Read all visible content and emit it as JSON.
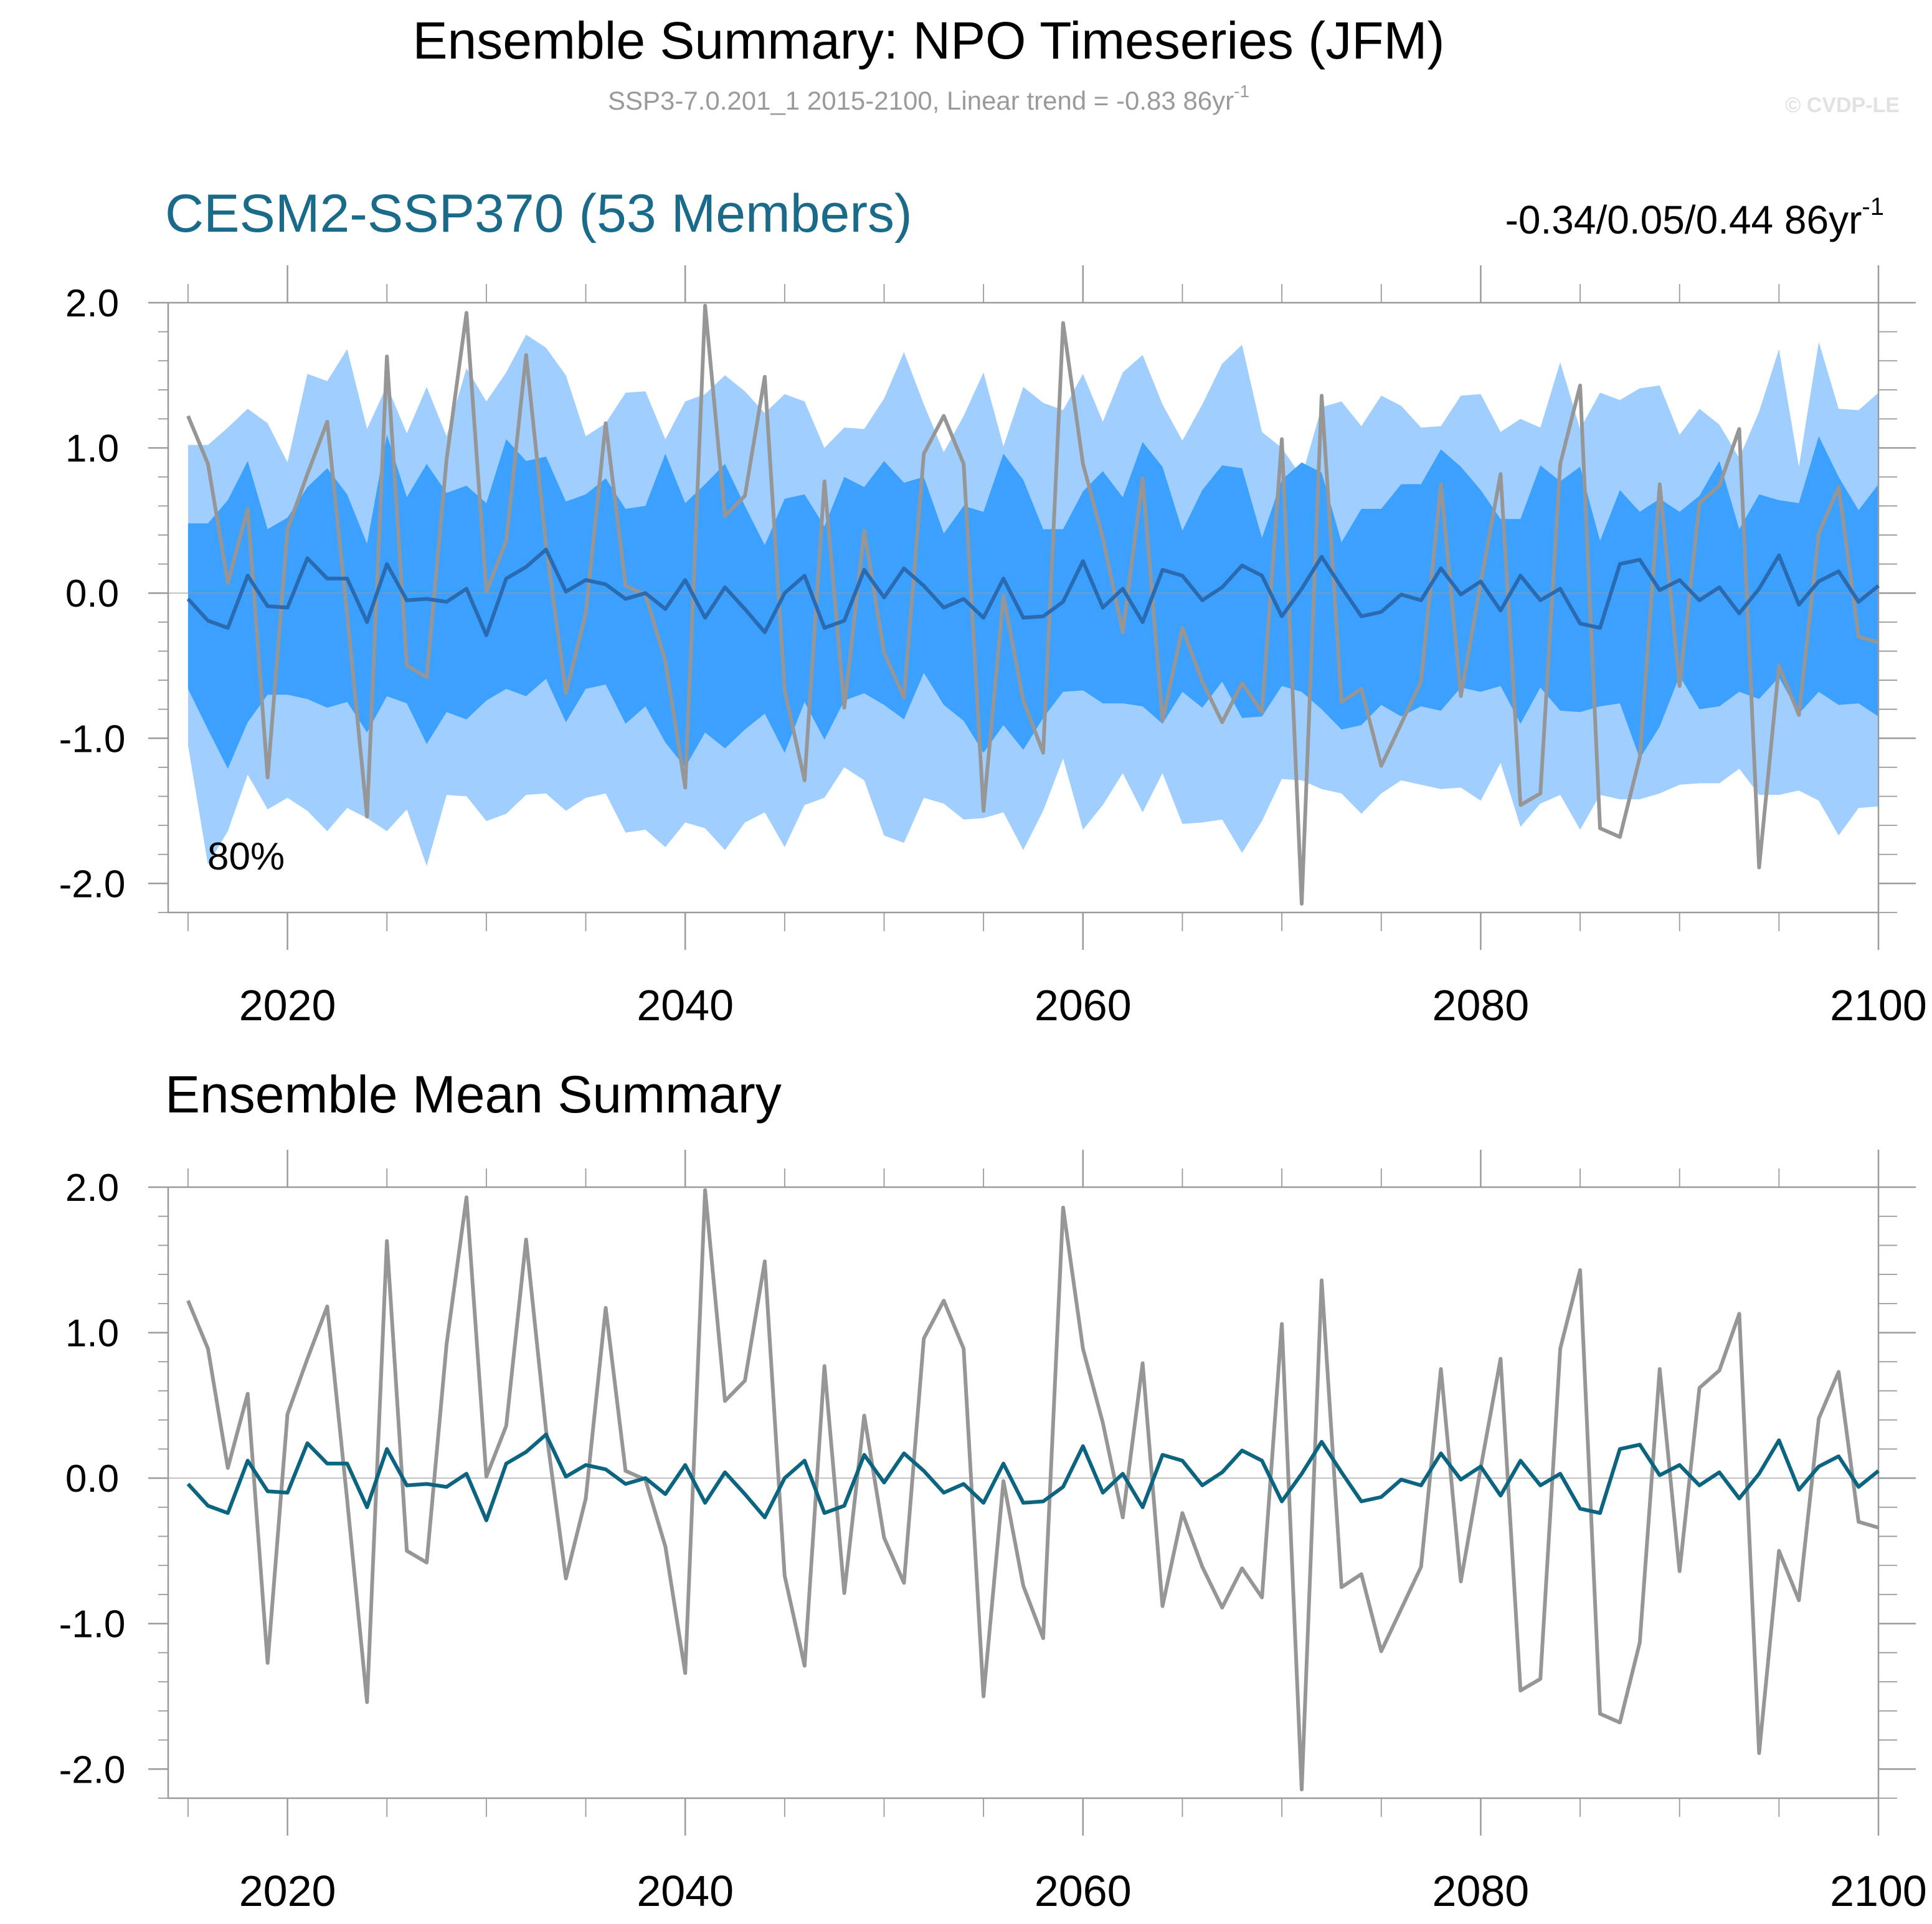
{
  "page": {
    "title": "Ensemble Summary: NPO Timeseries (JFM)",
    "subtitle_main": "SSP3-7.0.201_1 2015-2100, Linear trend = -0.83 86yr",
    "subtitle_exp": "-1",
    "watermark": "© CVDP-LE"
  },
  "colors": {
    "outer_band": "#a0cfff",
    "inner_band": "#3ca0ff",
    "ens_mean_top": "#2a6ab0",
    "ens_mean_bottom": "#0b6480",
    "observation": "#969696",
    "panel_title_top": "#1a6a8a",
    "frame": "#9a9a9a"
  },
  "chart_data": [
    {
      "type": "area",
      "panel_title": "CESM2-SSP370 (53 Members)",
      "trend_label": "-0.34/0.05/0.44 86yr",
      "trend_exp": "-1",
      "band_label": "80%",
      "x_range": [
        2014,
        2100
      ],
      "ylim": [
        -2.2,
        2.0
      ],
      "xticks": [
        2020,
        2040,
        2060,
        2080,
        2100
      ],
      "yticks": [
        2.0,
        1.0,
        0.0,
        -1.0,
        -2.0
      ],
      "ytick_labels": [
        "2.0",
        "1.0",
        "0.0",
        "-1.0",
        "-2.0"
      ],
      "x_start": 2015,
      "series": [
        {
          "role": "outer_upper",
          "values": [
            1.02,
            1.02,
            1.14,
            1.27,
            1.17,
            0.9,
            1.51,
            1.46,
            1.68,
            1.13,
            1.43,
            1.1,
            1.42,
            1.08,
            1.55,
            1.32,
            1.52,
            1.78,
            1.69,
            1.5,
            1.08,
            1.17,
            1.38,
            1.39,
            1.06,
            1.32,
            1.37,
            1.5,
            1.39,
            1.24,
            1.37,
            1.32,
            1.0,
            1.14,
            1.13,
            1.34,
            1.66,
            1.3,
            0.97,
            1.22,
            1.52,
            1.01,
            1.42,
            1.31,
            1.26,
            1.51,
            1.18,
            1.52,
            1.64,
            1.3,
            1.05,
            1.3,
            1.58,
            1.71,
            1.11,
            1.0,
            0.8,
            1.28,
            1.32,
            1.15,
            1.36,
            1.29,
            1.14,
            1.15,
            1.36,
            1.37,
            1.11,
            1.2,
            1.14,
            1.59,
            1.13,
            1.38,
            1.33,
            1.41,
            1.43,
            1.09,
            1.27,
            1.16,
            0.93,
            1.25,
            1.68,
            0.87,
            1.73,
            1.27,
            1.26,
            1.38
          ]
        },
        {
          "role": "inner_upper",
          "values": [
            0.48,
            0.48,
            0.64,
            0.91,
            0.44,
            0.52,
            0.73,
            0.86,
            0.68,
            0.34,
            1.09,
            0.66,
            0.89,
            0.69,
            0.74,
            0.62,
            1.06,
            0.91,
            0.94,
            0.63,
            0.68,
            0.79,
            0.58,
            0.6,
            0.96,
            0.62,
            0.75,
            0.89,
            0.6,
            0.33,
            0.65,
            0.68,
            0.46,
            0.8,
            0.73,
            0.91,
            0.76,
            0.8,
            0.41,
            0.6,
            0.56,
            0.96,
            0.78,
            0.44,
            0.44,
            0.7,
            0.84,
            0.66,
            1.04,
            0.87,
            0.43,
            0.71,
            0.88,
            0.86,
            0.38,
            0.78,
            0.9,
            0.83,
            0.35,
            0.58,
            0.58,
            0.75,
            0.75,
            0.99,
            0.87,
            0.71,
            0.51,
            0.51,
            0.88,
            0.77,
            0.87,
            0.36,
            0.71,
            0.56,
            0.65,
            0.56,
            0.67,
            0.91,
            0.44,
            0.68,
            0.64,
            0.62,
            1.08,
            0.8,
            0.57,
            0.75
          ]
        },
        {
          "role": "inner_lower",
          "values": [
            -0.66,
            -0.94,
            -1.21,
            -0.89,
            -0.7,
            -0.7,
            -0.73,
            -0.79,
            -0.75,
            -0.96,
            -0.71,
            -0.76,
            -1.04,
            -0.82,
            -0.87,
            -0.74,
            -0.66,
            -0.71,
            -0.59,
            -0.89,
            -0.66,
            -0.63,
            -0.9,
            -0.78,
            -1.03,
            -1.2,
            -0.96,
            -1.07,
            -0.94,
            -0.83,
            -1.1,
            -0.75,
            -1.01,
            -0.74,
            -0.69,
            -0.77,
            -0.87,
            -0.55,
            -0.77,
            -0.88,
            -1.1,
            -0.91,
            -1.08,
            -0.86,
            -0.68,
            -0.67,
            -0.76,
            -0.76,
            -0.78,
            -0.9,
            -0.68,
            -0.79,
            -0.61,
            -0.86,
            -0.85,
            -0.64,
            -0.68,
            -0.8,
            -0.94,
            -0.91,
            -0.77,
            -0.85,
            -0.78,
            -0.81,
            -0.65,
            -0.68,
            -0.64,
            -0.9,
            -0.65,
            -0.81,
            -0.82,
            -0.78,
            -0.76,
            -1.14,
            -0.92,
            -0.57,
            -0.8,
            -0.78,
            -0.68,
            -0.73,
            -0.58,
            -0.83,
            -0.68,
            -0.77,
            -0.76,
            -0.85
          ]
        },
        {
          "role": "outer_lower",
          "values": [
            -1.05,
            -1.87,
            -1.64,
            -1.25,
            -1.49,
            -1.41,
            -1.5,
            -1.64,
            -1.48,
            -1.55,
            -1.64,
            -1.49,
            -1.88,
            -1.39,
            -1.4,
            -1.57,
            -1.52,
            -1.39,
            -1.38,
            -1.5,
            -1.41,
            -1.38,
            -1.65,
            -1.63,
            -1.75,
            -1.58,
            -1.62,
            -1.77,
            -1.58,
            -1.51,
            -1.75,
            -1.46,
            -1.41,
            -1.2,
            -1.29,
            -1.67,
            -1.72,
            -1.41,
            -1.45,
            -1.56,
            -1.55,
            -1.51,
            -1.77,
            -1.5,
            -1.14,
            -1.63,
            -1.46,
            -1.24,
            -1.51,
            -1.24,
            -1.59,
            -1.58,
            -1.56,
            -1.79,
            -1.57,
            -1.28,
            -1.29,
            -1.35,
            -1.38,
            -1.52,
            -1.38,
            -1.29,
            -1.32,
            -1.35,
            -1.34,
            -1.43,
            -1.17,
            -1.61,
            -1.45,
            -1.39,
            -1.63,
            -1.39,
            -1.42,
            -1.42,
            -1.38,
            -1.32,
            -1.31,
            -1.31,
            -1.21,
            -1.39,
            -1.39,
            -1.36,
            -1.43,
            -1.67,
            -1.48,
            -1.47
          ]
        },
        {
          "name": "Ensemble mean",
          "role": "ens_mean",
          "values": [
            -0.04,
            -0.19,
            -0.24,
            0.12,
            -0.09,
            -0.1,
            0.24,
            0.1,
            0.1,
            -0.2,
            0.2,
            -0.05,
            -0.04,
            -0.06,
            0.03,
            -0.29,
            0.1,
            0.18,
            0.3,
            0.01,
            0.09,
            0.06,
            -0.04,
            0.0,
            -0.11,
            0.09,
            -0.17,
            0.04,
            -0.11,
            -0.27,
            0.0,
            0.12,
            -0.24,
            -0.19,
            0.16,
            -0.03,
            0.17,
            0.05,
            -0.1,
            -0.04,
            -0.17,
            0.1,
            -0.17,
            -0.16,
            -0.06,
            0.22,
            -0.1,
            0.03,
            -0.2,
            0.16,
            0.12,
            -0.05,
            0.04,
            0.19,
            0.12,
            -0.16,
            0.03,
            0.25,
            0.04,
            -0.16,
            -0.13,
            -0.01,
            -0.05,
            0.17,
            -0.01,
            0.08,
            -0.12,
            0.12,
            -0.05,
            0.03,
            -0.21,
            -0.24,
            0.2,
            0.23,
            0.02,
            0.09,
            -0.05,
            0.04,
            -0.14,
            0.03,
            0.26,
            -0.08,
            0.08,
            0.15,
            -0.06,
            0.05
          ]
        },
        {
          "name": "Observations",
          "role": "observation",
          "values": [
            1.22,
            0.89,
            0.07,
            0.58,
            -1.27,
            0.44,
            0.82,
            1.18,
            -0.15,
            -1.54,
            1.63,
            -0.5,
            -0.58,
            0.92,
            1.93,
            0.01,
            0.36,
            1.64,
            0.33,
            -0.69,
            -0.14,
            1.17,
            0.05,
            -0.01,
            -0.47,
            -1.34,
            1.98,
            0.53,
            0.67,
            1.49,
            -0.67,
            -1.29,
            0.77,
            -0.79,
            0.43,
            -0.41,
            -0.72,
            0.96,
            1.22,
            0.89,
            -1.5,
            -0.02,
            -0.74,
            -1.1,
            1.86,
            0.89,
            0.38,
            -0.27,
            0.79,
            -0.88,
            -0.24,
            -0.61,
            -0.89,
            -0.62,
            -0.82,
            1.06,
            -2.14,
            1.36,
            -0.75,
            -0.66,
            -1.19,
            -0.9,
            -0.61,
            0.75,
            -0.71,
            0.07,
            0.82,
            -1.46,
            -1.38,
            0.89,
            1.43,
            -1.62,
            -1.68,
            -1.13,
            0.75,
            -0.64,
            0.62,
            0.74,
            1.13,
            -1.89,
            -0.5,
            -0.84,
            0.41,
            0.73,
            -0.3,
            -0.34
          ]
        }
      ]
    },
    {
      "type": "line",
      "panel_title": "Ensemble Mean Summary",
      "x_range": [
        2014,
        2100
      ],
      "ylim": [
        -2.2,
        2.0
      ],
      "xticks": [
        2020,
        2040,
        2060,
        2080,
        2100
      ],
      "yticks": [
        2.0,
        1.0,
        0.0,
        -1.0,
        -2.0
      ],
      "ytick_labels": [
        "2.0",
        "1.0",
        "0.0",
        "-1.0",
        "-2.0"
      ],
      "x_start": 2015,
      "series": [
        {
          "name": "Observations",
          "role": "observation",
          "values": [
            1.22,
            0.89,
            0.07,
            0.58,
            -1.27,
            0.44,
            0.82,
            1.18,
            -0.15,
            -1.54,
            1.63,
            -0.5,
            -0.58,
            0.92,
            1.93,
            0.01,
            0.36,
            1.64,
            0.33,
            -0.69,
            -0.14,
            1.17,
            0.05,
            -0.01,
            -0.47,
            -1.34,
            1.98,
            0.53,
            0.67,
            1.49,
            -0.67,
            -1.29,
            0.77,
            -0.79,
            0.43,
            -0.41,
            -0.72,
            0.96,
            1.22,
            0.89,
            -1.5,
            -0.02,
            -0.74,
            -1.1,
            1.86,
            0.89,
            0.38,
            -0.27,
            0.79,
            -0.88,
            -0.24,
            -0.61,
            -0.89,
            -0.62,
            -0.82,
            1.06,
            -2.14,
            1.36,
            -0.75,
            -0.66,
            -1.19,
            -0.9,
            -0.61,
            0.75,
            -0.71,
            0.07,
            0.82,
            -1.46,
            -1.38,
            0.89,
            1.43,
            -1.62,
            -1.68,
            -1.13,
            0.75,
            -0.64,
            0.62,
            0.74,
            1.13,
            -1.89,
            -0.5,
            -0.84,
            0.41,
            0.73,
            -0.3,
            -0.34
          ]
        },
        {
          "name": "Ensemble mean",
          "role": "ens_mean",
          "values": [
            -0.04,
            -0.19,
            -0.24,
            0.12,
            -0.09,
            -0.1,
            0.24,
            0.1,
            0.1,
            -0.2,
            0.2,
            -0.05,
            -0.04,
            -0.06,
            0.03,
            -0.29,
            0.1,
            0.18,
            0.3,
            0.01,
            0.09,
            0.06,
            -0.04,
            0.0,
            -0.11,
            0.09,
            -0.17,
            0.04,
            -0.11,
            -0.27,
            0.0,
            0.12,
            -0.24,
            -0.19,
            0.16,
            -0.03,
            0.17,
            0.05,
            -0.1,
            -0.04,
            -0.17,
            0.1,
            -0.17,
            -0.16,
            -0.06,
            0.22,
            -0.1,
            0.03,
            -0.2,
            0.16,
            0.12,
            -0.05,
            0.04,
            0.19,
            0.12,
            -0.16,
            0.03,
            0.25,
            0.04,
            -0.16,
            -0.13,
            -0.01,
            -0.05,
            0.17,
            -0.01,
            0.08,
            -0.12,
            0.12,
            -0.05,
            0.03,
            -0.21,
            -0.24,
            0.2,
            0.23,
            0.02,
            0.09,
            -0.05,
            0.04,
            -0.14,
            0.03,
            0.26,
            -0.08,
            0.08,
            0.15,
            -0.06,
            0.05
          ]
        }
      ]
    }
  ]
}
